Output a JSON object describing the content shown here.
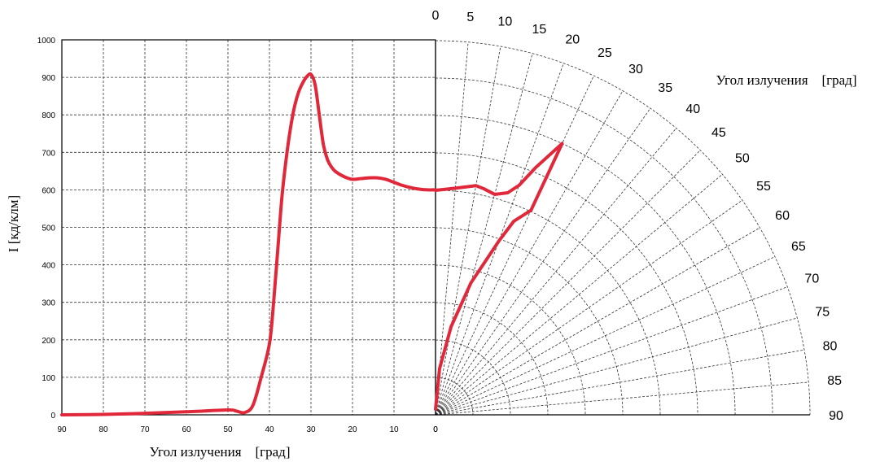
{
  "chart_data": {
    "type": "line",
    "subtype": "cartesian + polar luminous intensity diagram",
    "ylabel": "I   [кд/клм]",
    "xlabel": "Угол излучения    [град]",
    "polar_label": "Угол излучения    [град]",
    "ylim": [
      0,
      1000
    ],
    "xlim": [
      90,
      0
    ],
    "y_ticks": [
      "0",
      "100",
      "200",
      "300",
      "400",
      "500",
      "600",
      "700",
      "800",
      "900",
      "1000"
    ],
    "x_ticks": [
      "90",
      "80",
      "70",
      "60",
      "50",
      "40",
      "30",
      "20",
      "10",
      "0"
    ],
    "x_tick_zero": "0",
    "angle_ticks": [
      "0",
      "5",
      "10",
      "15",
      "20",
      "25",
      "30",
      "35",
      "40",
      "45",
      "50",
      "55",
      "60",
      "65",
      "70",
      "75",
      "80",
      "85",
      "90"
    ],
    "grid": true,
    "series": [
      {
        "color": "#e0283a",
        "cartesian": {
          "x": [
            90,
            80,
            70,
            60,
            50,
            48,
            46,
            44,
            42,
            40,
            39,
            38,
            37,
            36,
            35,
            34,
            33,
            32,
            31,
            30,
            29,
            28,
            27,
            26,
            25,
            24,
            22,
            20,
            18,
            16,
            14,
            12,
            10,
            8,
            6,
            4,
            2,
            0
          ],
          "y": [
            0,
            1,
            4,
            8,
            13,
            10,
            6,
            25,
            100,
            190,
            300,
            440,
            580,
            680,
            760,
            820,
            860,
            885,
            902,
            908,
            880,
            800,
            720,
            680,
            660,
            648,
            635,
            628,
            630,
            632,
            632,
            628,
            620,
            612,
            606,
            602,
            600,
            600
          ]
        },
        "polar": {
          "angle": [
            0,
            5,
            10,
            12,
            15,
            18,
            20,
            22,
            25,
            25,
            22,
            20,
            15,
            10,
            5,
            0
          ],
          "intensity": [
            600,
            608,
            622,
            618,
            610,
            624,
            653,
            712,
            800,
            603,
            558,
            494,
            365,
            239,
            124,
            15
          ]
        }
      }
    ]
  },
  "colors": {
    "curve": "#e0283a",
    "grid": "#333333",
    "axis": "#000000",
    "text": "#000000"
  }
}
